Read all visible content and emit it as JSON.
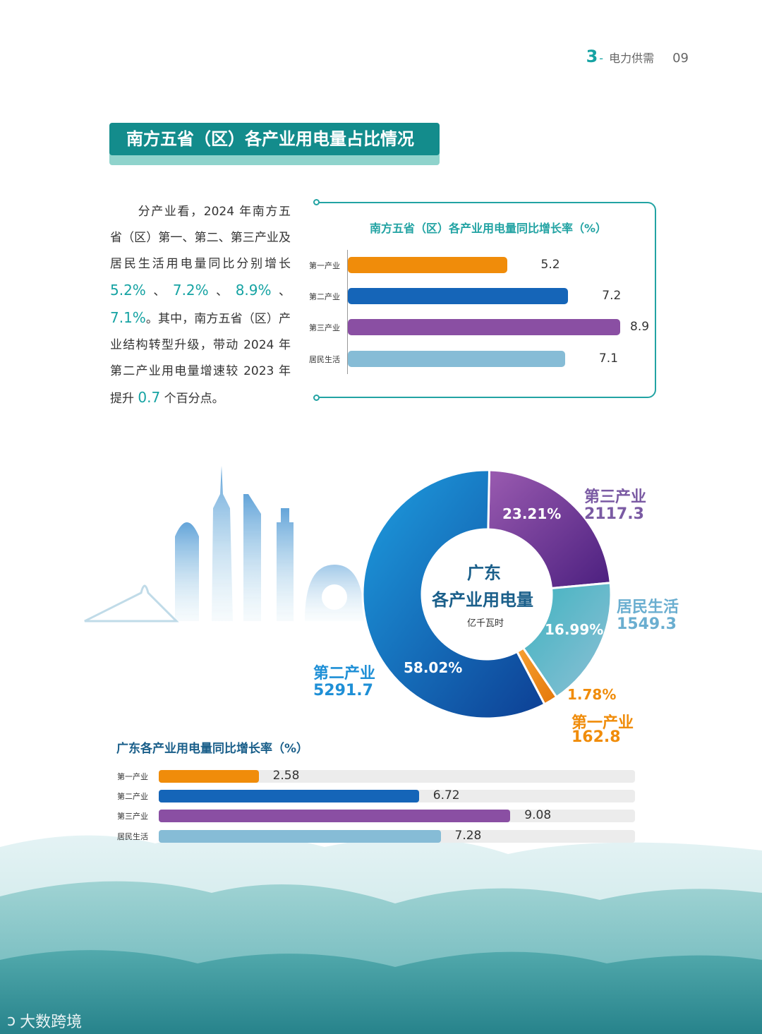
{
  "header": {
    "chapter_num": "3",
    "chapter_dash": "-",
    "chapter_title": "电力供需",
    "page_num": "09"
  },
  "section_title": "南方五省（区）各产业用电量占比情况",
  "intro": {
    "p1": "分产业看，2024 年南方五省（区）第一、第二、第三产业及居民生活用电量同比分别增长",
    "h1": "5.2%",
    "s1": "、",
    "h2": "7.2%",
    "s2": "、",
    "h3": "8.9%",
    "s3": "、",
    "h4": "7.1%",
    "p2": "。其中，南方五省（区）产业结构转型升级，带动 2024 年第二产业用电量增速较 2023 年提升",
    "h5": "0.7",
    "p3": "个百分点。"
  },
  "colors": {
    "primary": "#f08c0a",
    "secondary": "#1565b8",
    "tertiary": "#8a4fa3",
    "residential": "#86bcd6",
    "teal": "#16a3a3"
  },
  "chart_data": [
    {
      "type": "bar",
      "title": "南方五省（区）各产业用电量同比增长率（%）",
      "categories": [
        "第一产业",
        "第二产业",
        "第三产业",
        "居民生活"
      ],
      "values": [
        5.2,
        7.2,
        8.9,
        7.1
      ],
      "value_labels": [
        "5.2",
        "7.2",
        "8.9",
        "7.1"
      ],
      "xlim": [
        0,
        8.9
      ],
      "orientation": "horizontal"
    },
    {
      "type": "pie",
      "title": "广东",
      "subtitle": "各产业用电量",
      "unit": "亿千瓦时",
      "categories": [
        "第二产业",
        "第三产业",
        "居民生活",
        "第一产业"
      ],
      "values": [
        5291.7,
        2117.3,
        1549.3,
        162.8
      ],
      "value_labels": [
        "5291.7",
        "2117.3",
        "1549.3",
        "162.8"
      ],
      "percent_labels": [
        "58.02%",
        "23.21%",
        "16.99%",
        "1.78%"
      ],
      "percents": [
        58.02,
        23.21,
        16.99,
        1.78
      ]
    },
    {
      "type": "bar",
      "title": "广东各产业用电量同比增长率（%）",
      "categories": [
        "第一产业",
        "第二产业",
        "第三产业",
        "居民生活"
      ],
      "values": [
        2.58,
        6.72,
        9.08,
        7.28
      ],
      "value_labels": [
        "2.58",
        "6.72",
        "9.08",
        "7.28"
      ],
      "xlim": [
        0,
        12.3
      ],
      "orientation": "horizontal"
    }
  ],
  "watermark": "大数跨境"
}
